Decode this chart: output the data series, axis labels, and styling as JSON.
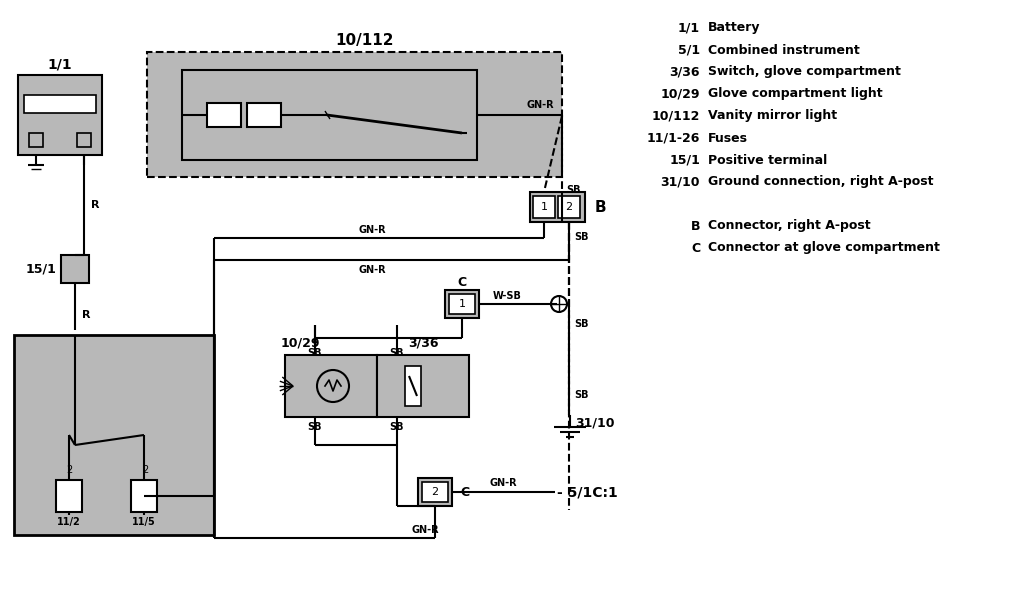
{
  "bg_color": "#ffffff",
  "gray_fill": "#b8b8b8",
  "line_color": "#000000",
  "legend_items": [
    [
      "1/1",
      "Battery"
    ],
    [
      "5/1",
      "Combined instrument"
    ],
    [
      "3/36",
      "Switch, glove compartment"
    ],
    [
      "10/29",
      "Glove compartment light"
    ],
    [
      "10/112",
      "Vanity mirror light"
    ],
    [
      "11/1-26",
      "Fuses"
    ],
    [
      "15/1",
      "Positive terminal"
    ],
    [
      "31/10",
      "Ground connection, right A-post"
    ]
  ],
  "legend_items2": [
    [
      "B",
      "Connector, right A-post"
    ],
    [
      "C",
      "Connector at glove compartment"
    ]
  ]
}
